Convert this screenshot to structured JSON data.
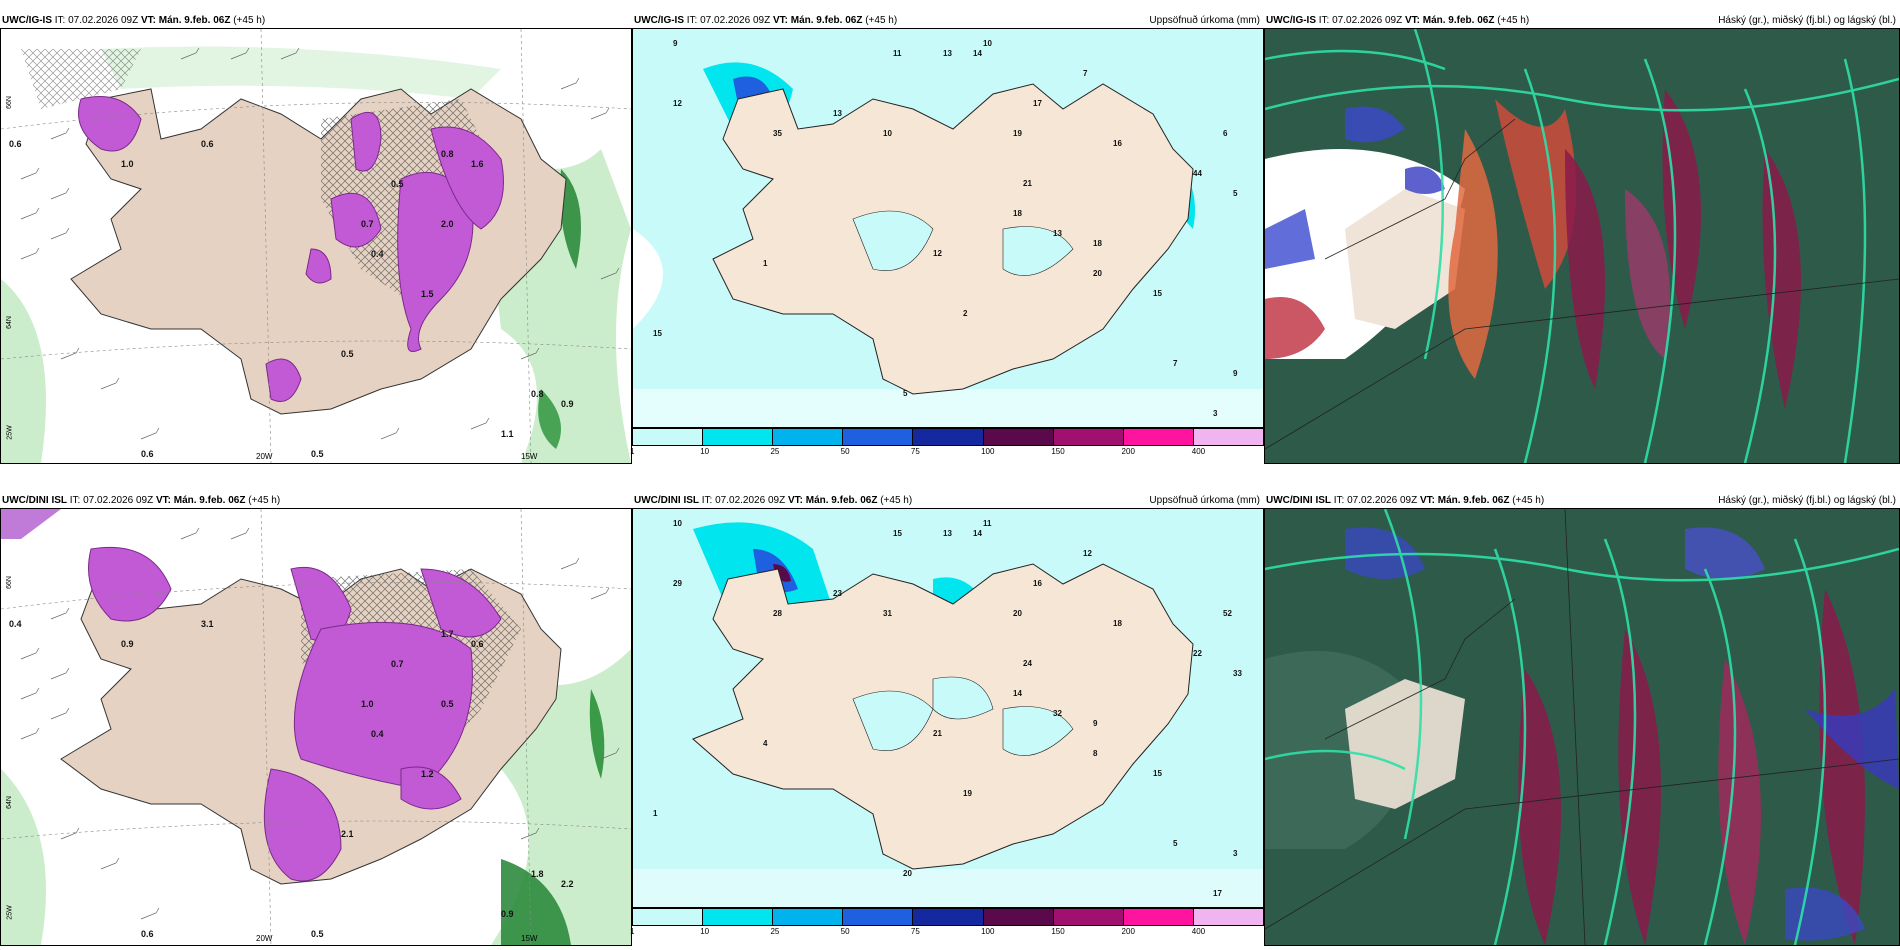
{
  "rows": [
    {
      "model": "UWC/IG-IS",
      "it_label": "IT:",
      "it_value": "07.02.2026 09Z",
      "vt_label": "VT:",
      "vt_value": "Mán. 9.feb. 06Z",
      "lead": "(+45 h)",
      "wind_labels": {
        "w20": "20W",
        "w15": "15W",
        "n66": "66N",
        "n64": "64N",
        "w25": "25W"
      },
      "wind_values": [
        "0.6",
        "0.6",
        "0.8",
        "1.0",
        "1.6",
        "1.5",
        "2.0",
        "0.4",
        "0.5",
        "0.7",
        "0.5",
        "0.8",
        "0.9",
        "1.1",
        "0.6",
        "0.5"
      ],
      "precip_numbers": [
        "9",
        "11",
        "13",
        "14",
        "10",
        "7",
        "12",
        "35",
        "13",
        "19",
        "21",
        "10",
        "17",
        "16",
        "18",
        "44",
        "5",
        "6",
        "13",
        "12",
        "15",
        "20",
        "18",
        "9",
        "7",
        "15",
        "1",
        "2",
        "3",
        "5"
      ]
    },
    {
      "model": "UWC/DINI ISL",
      "it_label": "IT:",
      "it_value": "07.02.2026 09Z",
      "vt_label": "VT:",
      "vt_value": "Mán. 9.feb. 06Z",
      "lead": "(+45 h)",
      "wind_labels": {
        "w20": "20W",
        "w15": "15W",
        "n66": "66N",
        "n64": "64N",
        "w25": "25W"
      },
      "wind_values": [
        "0.4",
        "3.1",
        "1.7",
        "0.9",
        "0.6",
        "1.2",
        "0.5",
        "0.4",
        "0.7",
        "1.0",
        "2.1",
        "1.8",
        "2.2",
        "0.9",
        "0.6",
        "0.5"
      ],
      "precip_numbers": [
        "10",
        "15",
        "13",
        "14",
        "11",
        "12",
        "29",
        "28",
        "23",
        "20",
        "24",
        "31",
        "16",
        "18",
        "14",
        "22",
        "33",
        "52",
        "32",
        "21",
        "15",
        "8",
        "9",
        "3",
        "5",
        "1",
        "4",
        "19",
        "17",
        "20"
      ]
    }
  ],
  "precip_title": "Uppsöfnuð úrkoma (mm)",
  "cloud_title": "Háský (gr.), miðský (fj.bl.) og lágský (bl.)",
  "colorbar": {
    "ticks": [
      "1",
      "10",
      "25",
      "50",
      "75",
      "100",
      "150",
      "200",
      "400"
    ],
    "colors": [
      "#c8fafa",
      "#00e5ee",
      "#00b2ee",
      "#1e60e0",
      "#1428a0",
      "#5a0a4a",
      "#a0106e",
      "#ff14a0",
      "#f0b4f0"
    ]
  }
}
